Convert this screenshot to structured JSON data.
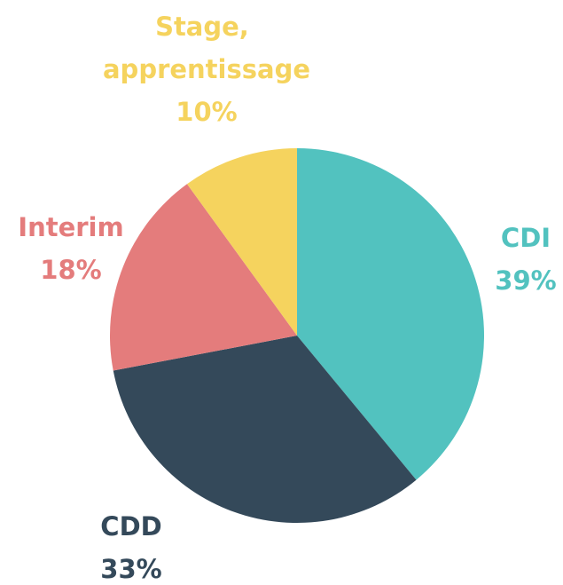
{
  "chart_data": {
    "type": "pie",
    "categories": [
      "CDI",
      "CDD",
      "Interim",
      "Stage, apprentissage"
    ],
    "values": [
      39,
      33,
      18,
      10
    ],
    "value_labels": [
      "39%",
      "33%",
      "18%",
      "10%"
    ],
    "colors": [
      "#52c2bf",
      "#34495a",
      "#e47c7c",
      "#f5d35e"
    ]
  }
}
